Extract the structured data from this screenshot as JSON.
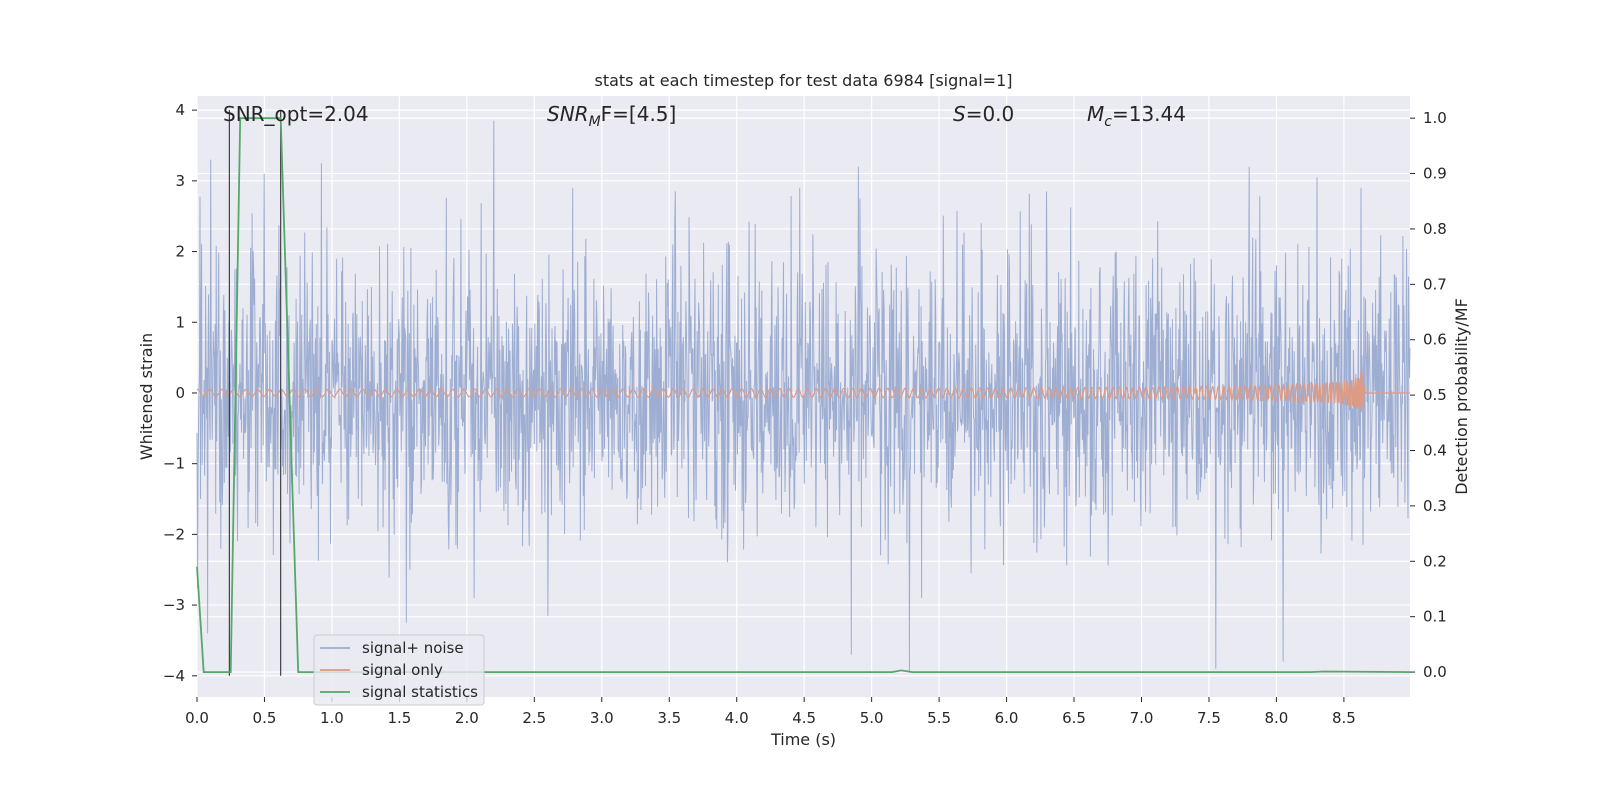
{
  "chart_data": {
    "type": "line",
    "title": "stats at each timestep for test data 6984 [signal=1]",
    "xlabel": "Time (s)",
    "ylabel": "Whitened strain",
    "ylabel_right": "Detection probability/MF",
    "xlim": [
      0.0,
      8.99
    ],
    "ylim": [
      -4.3,
      4.2
    ],
    "ylim_right": [
      -0.045,
      1.04
    ],
    "xticks": [
      0.0,
      0.5,
      1.0,
      1.5,
      2.0,
      2.5,
      3.0,
      3.5,
      4.0,
      4.5,
      5.0,
      5.5,
      6.0,
      6.5,
      7.0,
      7.5,
      8.0,
      8.5
    ],
    "xtick_labels": [
      "0.0",
      "0.5",
      "1.0",
      "1.5",
      "2.0",
      "2.5",
      "3.0",
      "3.5",
      "4.0",
      "4.5",
      "5.0",
      "5.5",
      "6.0",
      "6.5",
      "7.0",
      "7.5",
      "8.0",
      "8.5"
    ],
    "yticks": [
      -4,
      -3,
      -2,
      -1,
      0,
      1,
      2,
      3,
      4
    ],
    "ytick_labels": [
      "−4",
      "−3",
      "−2",
      "−1",
      "0",
      "1",
      "2",
      "3",
      "4"
    ],
    "yticks_right": [
      0.0,
      0.1,
      0.2,
      0.3,
      0.4,
      0.5,
      0.6,
      0.7,
      0.8,
      0.9,
      1.0
    ],
    "ytick_labels_right": [
      "0.0",
      "0.1",
      "0.2",
      "0.3",
      "0.4",
      "0.5",
      "0.6",
      "0.7",
      "0.8",
      "0.9",
      "1.0"
    ],
    "grid": true,
    "legend_position": "lower-left",
    "annotations": {
      "snr_opt": "SNR_opt=2.04",
      "snr_mf_main": "SNR",
      "snr_mf_sub": "M",
      "snr_mf_rest": "F=[4.5]",
      "s_italic": "S",
      "s_rest": "=0.0",
      "mc_main": "M",
      "mc_sub": "c",
      "mc_rest": "=13.44"
    },
    "vertical_lines_x": [
      0.24,
      0.62
    ],
    "series": [
      {
        "name": "signal+ noise",
        "color": "#9aabd0",
        "kind": "noise",
        "duration": 8.99,
        "sigma": 1.0,
        "spike_peaks": [
          {
            "x": 0.1,
            "y": 3.3
          },
          {
            "x": 0.5,
            "y": 3.1
          },
          {
            "x": 0.92,
            "y": 3.25
          },
          {
            "x": 2.2,
            "y": 3.85
          },
          {
            "x": 4.9,
            "y": 3.2
          },
          {
            "x": 7.8,
            "y": 3.2
          },
          {
            "x": 8.3,
            "y": 3.05
          },
          {
            "x": 0.08,
            "y": -3.4
          },
          {
            "x": 1.55,
            "y": -3.25
          },
          {
            "x": 2.6,
            "y": -3.15
          },
          {
            "x": 4.85,
            "y": -3.7
          },
          {
            "x": 5.28,
            "y": -3.95
          },
          {
            "x": 7.55,
            "y": -3.9
          },
          {
            "x": 8.05,
            "y": -3.8
          }
        ]
      },
      {
        "name": "signal only",
        "color": "#dd9a85",
        "kind": "chirp",
        "t_start": 0.0,
        "t_merge": 8.65,
        "peak_amplitude": 0.5
      },
      {
        "name": "signal statistics",
        "color": "#55a868",
        "kind": "step",
        "x": [
          0.0,
          0.05,
          0.25,
          0.32,
          0.62,
          0.75,
          5.15,
          5.22,
          5.3,
          8.25,
          8.35,
          8.99
        ],
        "values": [
          0.19,
          0.0,
          0.0,
          1.0,
          1.0,
          0.0,
          0.0,
          0.003,
          0.0,
          0.0,
          0.001,
          0.0
        ]
      }
    ]
  },
  "colors": {
    "axes_bg": "#eaeaf2",
    "grid": "#ffffff",
    "noise": "#9aabd0",
    "signal": "#dd9a85",
    "stats": "#55a868",
    "vline": "#404048"
  }
}
